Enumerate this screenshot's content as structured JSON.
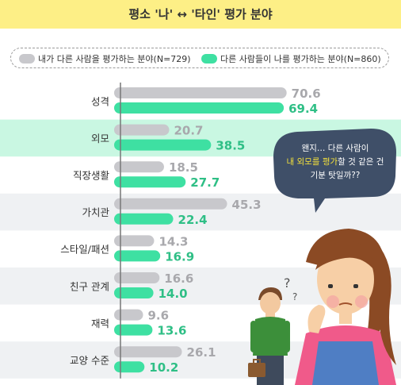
{
  "chart_data": {
    "type": "bar",
    "title": "평소 '나' ↔ '타인' 평가 분야",
    "categories": [
      "성격",
      "외모",
      "직장생활",
      "가치관",
      "스타일/패션",
      "친구 관계",
      "재력",
      "교양 수준"
    ],
    "series": [
      {
        "name": "내가 다른 사람을 평가하는 분야(N=729)",
        "color": "#c8c8cc",
        "values": [
          70.6,
          20.7,
          18.5,
          45.3,
          14.3,
          16.6,
          9.6,
          26.1
        ]
      },
      {
        "name": "다른 사람들이 나를 평가하는 분야(N=860)",
        "color": "#3ee0a2",
        "values": [
          69.4,
          38.5,
          27.7,
          22.4,
          16.9,
          14.0,
          13.6,
          10.2
        ]
      }
    ],
    "highlight_category": "외모",
    "highlight_color": "#c9f7e2",
    "band_color": "#eff1f3",
    "legend_position": "top"
  },
  "bubble": {
    "line1": "왠지… 다른 사람이",
    "highlight": "내 외모를 평가",
    "line2_rest": "할 것 같은 건",
    "line3": "기분 탓일까??",
    "highlight_color": "#f4e13c",
    "fill_color": "#3f4f68"
  },
  "question_mark": "?",
  "colors": {
    "title_band": "#fdef86"
  }
}
